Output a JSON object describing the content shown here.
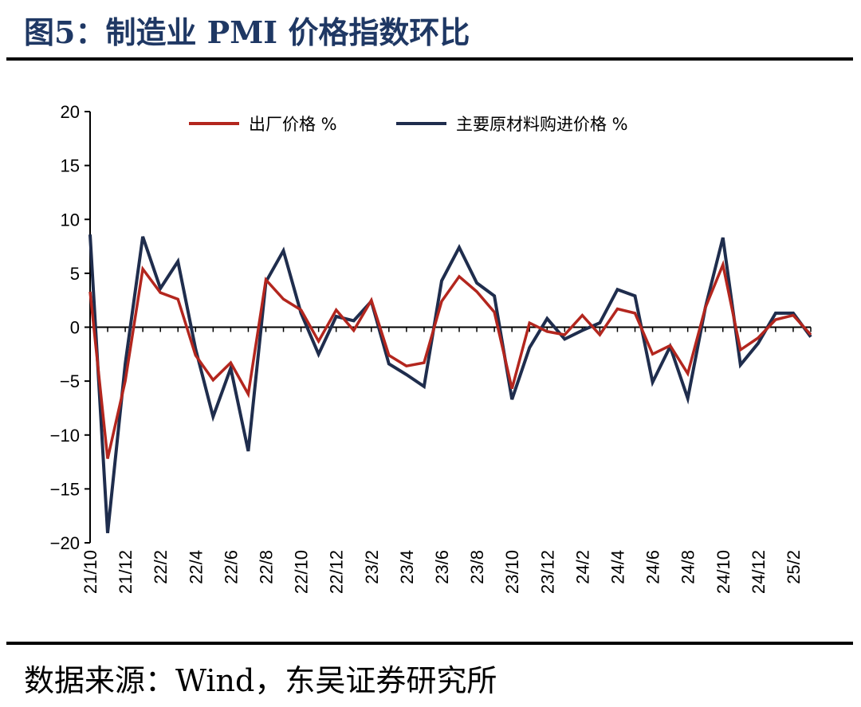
{
  "header": {
    "title": "图5：制造业 PMI 价格指数环比"
  },
  "footer": {
    "source": "数据来源：Wind，东吴证券研究所"
  },
  "chart_data": {
    "type": "line",
    "title": "",
    "xlabel": "",
    "ylabel": "",
    "ylim": [
      -20,
      20
    ],
    "yticks": [
      20,
      15,
      10,
      5,
      0,
      -5,
      -10,
      -15,
      -20
    ],
    "ytick_labels": [
      "20",
      "15",
      "10",
      "5",
      "0",
      "−5",
      "−10",
      "−15",
      "−20"
    ],
    "legend_position": "top",
    "x": [
      "21/10",
      "21/11",
      "21/12",
      "22/1",
      "22/2",
      "22/3",
      "22/4",
      "22/5",
      "22/6",
      "22/7",
      "22/8",
      "22/9",
      "22/10",
      "22/11",
      "22/12",
      "23/1",
      "23/2",
      "23/3",
      "23/4",
      "23/5",
      "23/6",
      "23/7",
      "23/8",
      "23/9",
      "23/10",
      "23/11",
      "23/12",
      "24/1",
      "24/2",
      "24/3",
      "24/4",
      "24/5",
      "24/6",
      "24/7",
      "24/8",
      "24/9",
      "24/10",
      "24/11",
      "24/12",
      "25/1",
      "25/2",
      "25/3"
    ],
    "xtick_labels": [
      "21/10",
      "21/12",
      "22/2",
      "22/4",
      "22/6",
      "22/8",
      "22/10",
      "22/12",
      "23/2",
      "23/4",
      "23/6",
      "23/8",
      "23/10",
      "23/12",
      "24/2",
      "24/4",
      "24/6",
      "24/8",
      "24/10",
      "24/12",
      "25/2"
    ],
    "series": [
      {
        "name": "出厂价格 %",
        "color": "#b3261e",
        "values": [
          3.3,
          -12.2,
          -5.0,
          5.4,
          3.2,
          2.6,
          -2.6,
          -4.9,
          -3.3,
          -6.2,
          4.4,
          2.6,
          1.6,
          -1.3,
          1.6,
          -0.3,
          2.5,
          -2.6,
          -3.6,
          -3.3,
          2.4,
          4.7,
          3.3,
          1.4,
          -5.7,
          0.4,
          -0.4,
          -0.7,
          1.1,
          -0.7,
          1.7,
          1.3,
          -2.5,
          -1.7,
          -4.3,
          1.8,
          5.8,
          -2.1,
          -1.0,
          0.7,
          1.1,
          -0.7
        ]
      },
      {
        "name": "主要原材料购进价格 %",
        "color": "#1f2d4d",
        "values": [
          8.6,
          -19.1,
          -3.4,
          8.4,
          3.6,
          6.1,
          -2.0,
          -8.3,
          -3.8,
          -11.5,
          4.2,
          7.1,
          1.3,
          -2.5,
          1.0,
          0.6,
          2.4,
          -3.4,
          -4.4,
          -5.5,
          4.3,
          7.4,
          4.1,
          2.9,
          -6.7,
          -1.9,
          0.8,
          -1.1,
          -0.3,
          0.4,
          3.5,
          2.9,
          -5.1,
          -1.8,
          -6.6,
          1.8,
          8.3,
          -3.5,
          -1.5,
          1.3,
          1.3,
          -0.9
        ]
      }
    ]
  }
}
